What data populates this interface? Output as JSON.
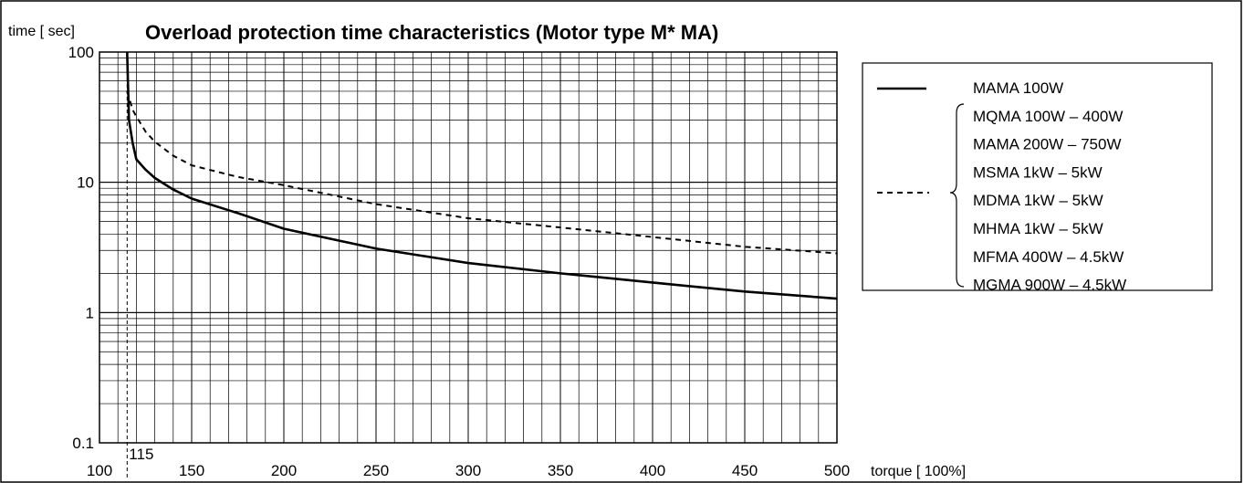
{
  "chart_data": {
    "type": "line",
    "title": "Overload protection time characteristics (Motor type M* MA)",
    "ylabel": "time [ sec]",
    "xlabel": "torque [ 100%]",
    "x_scale": "linear",
    "y_scale": "log",
    "xlim": [
      100,
      500
    ],
    "ylim": [
      0.1,
      100
    ],
    "x_ticks": [
      "100",
      "150",
      "200",
      "250",
      "300",
      "350",
      "400",
      "450",
      "500"
    ],
    "y_ticks": [
      "100",
      "10",
      "1",
      "0.1"
    ],
    "x_tick_values": [
      100,
      150,
      200,
      250,
      300,
      350,
      400,
      450,
      500
    ],
    "y_tick_values": [
      100,
      10,
      1,
      0.1
    ],
    "reference_line": {
      "x": 115,
      "label": "115",
      "style": "dashed"
    },
    "grid": true,
    "legend_position": "right",
    "series": [
      {
        "name": "MAMA 100W",
        "line_style": "solid",
        "x": [
          115,
          116,
          118,
          120,
          125,
          130,
          140,
          150,
          175,
          200,
          250,
          300,
          350,
          400,
          450,
          500
        ],
        "y": [
          100,
          30,
          20,
          15,
          12.5,
          10.8,
          8.8,
          7.5,
          5.8,
          4.4,
          3.1,
          2.4,
          2.0,
          1.7,
          1.45,
          1.28
        ]
      },
      {
        "names": [
          "MQMA 100W – 400W",
          "MAMA 200W – 750W",
          "MSMA 1kW – 5kW",
          "MDMA 1kW – 5kW",
          "MHMA 1kW – 5kW",
          "MFMA 400W – 4.5kW",
          "MGMA 900W – 4.5kW"
        ],
        "line_style": "dashed",
        "x": [
          115,
          118,
          120,
          125,
          130,
          140,
          150,
          175,
          200,
          250,
          300,
          350,
          400,
          450,
          500
        ],
        "y": [
          50,
          36,
          32,
          24.5,
          20.5,
          16,
          13.5,
          11,
          9.5,
          6.8,
          5.3,
          4.5,
          3.8,
          3.2,
          2.85
        ]
      }
    ]
  },
  "legend": {
    "solid_entry": "MAMA  100W",
    "dashed_entries": [
      "MQMA  100W – 400W",
      "MAMA  200W – 750W",
      "MSMA  1kW – 5kW",
      "MDMA  1kW – 5kW",
      "MHMA  1kW – 5kW",
      "MFMA  400W – 4.5kW",
      "MGMA  900W – 4.5kW"
    ]
  }
}
